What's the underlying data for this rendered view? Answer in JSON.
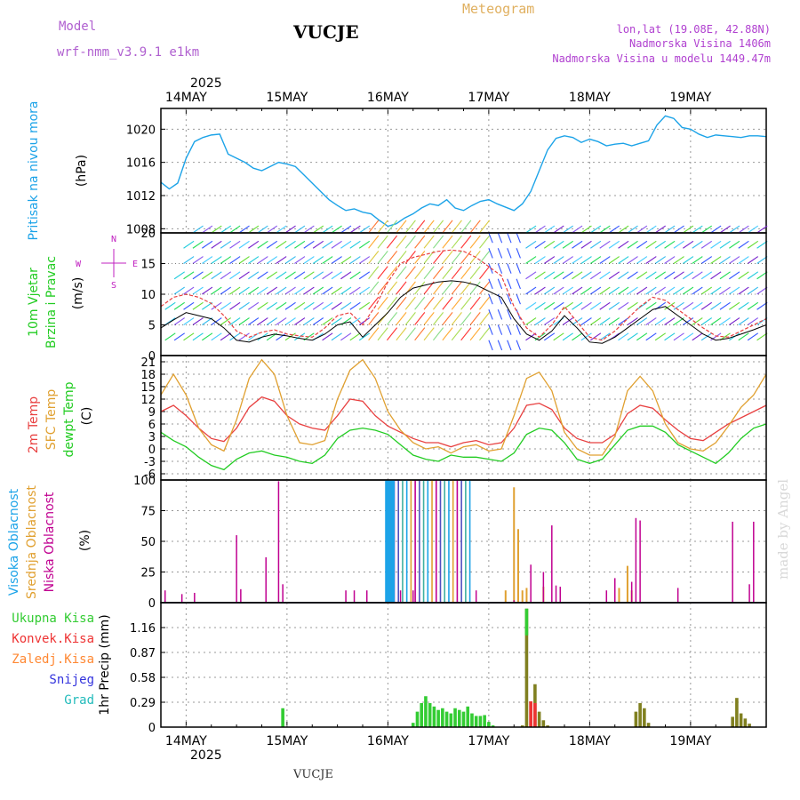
{
  "header": {
    "model_label": "Model",
    "model_name": "wrf-nmm_v3.9.1  e1km",
    "station": "VUCJE",
    "title": "Meteogram",
    "lonlat": "lon,lat (19.08E, 42.88N)",
    "elevation": "Nadmorska Visina 1406m",
    "model_elevation": "Nadmorska Visina u modelu 1449.47m",
    "year_top": "2025",
    "year_bottom": "2025",
    "footer_station": "VUCJE",
    "watermark": "made by Angel"
  },
  "colors": {
    "pressure": "#1ca3e8",
    "temp2m": "#e84040",
    "sfc": "#e0a030",
    "dew": "#22cc22",
    "magenta": "#c020c0",
    "high_cloud": "#1ca3e8",
    "mid_cloud": "#e0a030",
    "low_cloud": "#c00090",
    "total_precip": "#33cc33",
    "conv_precip": "#ee3333",
    "frozen": "#ff8833",
    "snow": "#3333dd",
    "hail": "#22bbbb"
  },
  "chart_data": [
    {
      "type": "line",
      "panel": "pressure",
      "ylabel": [
        "Pritisak na nivou mora",
        "(hPa)"
      ],
      "x_ticks": [
        "14MAY",
        "15MAY",
        "16MAY",
        "17MAY",
        "18MAY",
        "19MAY"
      ],
      "x_range_hours": [
        -6,
        138
      ],
      "ylim": [
        1007.5,
        1022.5
      ],
      "yticks": [
        1008,
        1012,
        1016,
        1020
      ],
      "grid": true,
      "series": [
        {
          "x": [
            -6,
            -4,
            -2,
            0,
            2,
            4,
            6,
            8,
            10,
            12,
            14,
            16,
            18,
            20,
            22,
            24,
            26,
            28,
            30,
            32,
            34,
            36,
            38,
            40,
            42,
            44,
            46,
            48,
            50,
            52,
            54,
            56,
            58,
            60,
            62,
            64,
            66,
            68,
            70,
            72,
            74,
            76,
            78,
            80,
            82,
            84,
            86,
            88,
            90,
            92,
            94,
            96,
            98,
            100,
            102,
            104,
            106,
            108,
            110,
            112,
            114,
            116,
            118,
            120,
            122,
            124,
            126,
            128,
            130,
            132,
            134,
            136,
            138
          ],
          "y": [
            1013.6,
            1012.8,
            1013.5,
            1016.5,
            1018.5,
            1019.0,
            1019.3,
            1019.4,
            1017.0,
            1016.5,
            1016.0,
            1015.3,
            1015.0,
            1015.5,
            1016.0,
            1015.8,
            1015.5,
            1014.5,
            1013.5,
            1012.5,
            1011.5,
            1010.8,
            1010.2,
            1010.4,
            1010.0,
            1009.8,
            1009.0,
            1008.3,
            1008.6,
            1009.3,
            1009.8,
            1010.5,
            1011.0,
            1010.8,
            1011.5,
            1010.5,
            1010.2,
            1010.8,
            1011.3,
            1011.5,
            1011.0,
            1010.6,
            1010.2,
            1011.0,
            1012.5,
            1015.0,
            1017.5,
            1018.9,
            1019.2,
            1019.0,
            1018.4,
            1018.8,
            1018.5,
            1018.0,
            1018.2,
            1018.3,
            1018.0,
            1018.3,
            1018.6,
            1020.5,
            1021.6,
            1021.3,
            1020.2,
            1020.0,
            1019.4,
            1019.0,
            1019.3,
            1019.2,
            1019.1,
            1019.0,
            1019.2,
            1019.2,
            1019.1
          ]
        }
      ]
    },
    {
      "type": "line",
      "panel": "wind",
      "ylabel": [
        "10m Vjetar",
        "Brzina i Pravac",
        "(m/s)"
      ],
      "compass_labels": [
        "N",
        "W",
        "E",
        "S"
      ],
      "ylim": [
        0,
        20
      ],
      "yticks": [
        0,
        5,
        10,
        15,
        20
      ],
      "grid": true,
      "series": [
        {
          "name": "speed",
          "x": [
            -6,
            -3,
            0,
            3,
            6,
            9,
            12,
            15,
            18,
            21,
            24,
            27,
            30,
            33,
            36,
            39,
            42,
            45,
            48,
            51,
            54,
            57,
            60,
            63,
            66,
            69,
            72,
            75,
            78,
            81,
            84,
            87,
            90,
            93,
            96,
            99,
            102,
            105,
            108,
            111,
            114,
            117,
            120,
            123,
            126,
            129,
            132,
            135,
            138
          ],
          "y": [
            4.5,
            5.8,
            7.0,
            6.5,
            6.0,
            4.5,
            2.5,
            2.2,
            3.0,
            3.5,
            3.2,
            2.8,
            2.5,
            3.5,
            5.0,
            5.5,
            3.0,
            5.0,
            7.0,
            9.5,
            11.0,
            11.5,
            12.0,
            12.2,
            12.0,
            11.5,
            10.5,
            9.5,
            6.0,
            3.5,
            2.5,
            4.0,
            6.5,
            4.5,
            2.2,
            2.0,
            3.0,
            4.5,
            6.0,
            7.5,
            8.0,
            6.5,
            5.0,
            3.5,
            2.5,
            2.8,
            3.5,
            4.2,
            5.0
          ]
        },
        {
          "name": "gust",
          "x": [
            -6,
            -3,
            0,
            3,
            6,
            9,
            12,
            15,
            18,
            21,
            24,
            27,
            30,
            33,
            36,
            39,
            42,
            45,
            48,
            51,
            54,
            57,
            60,
            63,
            66,
            69,
            72,
            75,
            78,
            81,
            84,
            87,
            90,
            93,
            96,
            99,
            102,
            105,
            108,
            111,
            114,
            117,
            120,
            123,
            126,
            129,
            132,
            135,
            138
          ],
          "y": [
            8.0,
            9.5,
            10.0,
            9.5,
            8.5,
            6.5,
            4.0,
            3.0,
            3.8,
            4.2,
            3.5,
            3.2,
            3.0,
            4.5,
            6.5,
            7.0,
            5.0,
            8.0,
            12.0,
            15.0,
            16.0,
            16.5,
            17.0,
            17.2,
            17.0,
            16.0,
            14.5,
            13.0,
            8.0,
            4.5,
            3.0,
            5.0,
            8.0,
            5.5,
            3.0,
            2.5,
            4.0,
            6.0,
            8.0,
            9.5,
            9.0,
            7.5,
            6.0,
            4.5,
            3.2,
            3.0,
            4.0,
            5.0,
            6.0
          ]
        }
      ]
    },
    {
      "type": "line",
      "panel": "temperature",
      "ylabel": [
        "2m Temp",
        "SFC Temp",
        "dewpt Temp",
        "(C)"
      ],
      "ylim": [
        -7.5,
        22.5
      ],
      "yticks": [
        -6,
        -3,
        0,
        3,
        6,
        9,
        12,
        15,
        18,
        21
      ],
      "grid": true,
      "series": [
        {
          "name": "2m Temp",
          "x": [
            -6,
            -3,
            0,
            3,
            6,
            9,
            12,
            15,
            18,
            21,
            24,
            27,
            30,
            33,
            36,
            39,
            42,
            45,
            48,
            51,
            54,
            57,
            60,
            63,
            66,
            69,
            72,
            75,
            78,
            81,
            84,
            87,
            90,
            93,
            96,
            99,
            102,
            105,
            108,
            111,
            114,
            117,
            120,
            123,
            126,
            129,
            132,
            135,
            138
          ],
          "y": [
            9,
            10.5,
            8,
            5,
            2.5,
            1.8,
            5,
            10,
            12.5,
            11.5,
            8,
            6,
            5,
            4.5,
            8,
            12,
            11.5,
            8,
            5.5,
            4,
            2.5,
            1.5,
            1.5,
            0.5,
            1.5,
            2,
            1,
            1.5,
            5,
            10.5,
            11,
            9.5,
            5,
            2.5,
            1.5,
            1.5,
            3.5,
            8.5,
            10.5,
            9.8,
            7,
            4.5,
            2.5,
            2,
            4,
            6,
            7.5,
            9,
            10.5
          ]
        },
        {
          "name": "SFC Temp",
          "x": [
            -6,
            -3,
            0,
            3,
            6,
            9,
            12,
            15,
            18,
            21,
            24,
            27,
            30,
            33,
            36,
            39,
            42,
            45,
            48,
            51,
            54,
            57,
            60,
            63,
            66,
            69,
            72,
            75,
            78,
            81,
            84,
            87,
            90,
            93,
            96,
            99,
            102,
            105,
            108,
            111,
            114,
            117,
            120,
            123,
            126,
            129,
            132,
            135,
            138
          ],
          "y": [
            13,
            18,
            13,
            5,
            1,
            -0.5,
            7,
            17,
            21.5,
            18,
            8,
            1.5,
            1,
            2,
            12,
            19,
            21.5,
            17,
            9,
            4.5,
            1.5,
            0,
            0.5,
            -1,
            0.5,
            1,
            -0.5,
            0,
            8,
            17,
            18.5,
            14,
            4,
            0,
            -1.5,
            -1.5,
            3,
            14,
            17.5,
            14,
            6,
            1.5,
            0,
            -0.5,
            1.5,
            5.5,
            10,
            13,
            18
          ]
        },
        {
          "name": "dewpt Temp",
          "x": [
            -6,
            -3,
            0,
            3,
            6,
            9,
            12,
            15,
            18,
            21,
            24,
            27,
            30,
            33,
            36,
            39,
            42,
            45,
            48,
            51,
            54,
            57,
            60,
            63,
            66,
            69,
            72,
            75,
            78,
            81,
            84,
            87,
            90,
            93,
            96,
            99,
            102,
            105,
            108,
            111,
            114,
            117,
            120,
            123,
            126,
            129,
            132,
            135,
            138
          ],
          "y": [
            4,
            2,
            0.5,
            -2,
            -4,
            -5,
            -2.5,
            -1,
            -0.5,
            -1.5,
            -2,
            -3,
            -3.5,
            -1.5,
            2.5,
            4.5,
            5,
            4.5,
            3.5,
            1,
            -1.5,
            -2.5,
            -3,
            -1.5,
            -2,
            -2,
            -2.5,
            -3,
            -1,
            3.5,
            5,
            4.5,
            1.5,
            -2.5,
            -3.5,
            -2.5,
            1,
            4.5,
            5.5,
            5.5,
            4,
            1,
            -0.5,
            -2,
            -3.5,
            -1,
            2.5,
            5,
            6
          ]
        }
      ]
    },
    {
      "type": "bar",
      "panel": "clouds",
      "ylabel": [
        "Visoka Oblacnost",
        "Srednja Oblacnost",
        "Niska Oblacnost",
        "(%)"
      ],
      "ylim": [
        0,
        100
      ],
      "yticks": [
        0,
        25,
        50,
        75,
        100
      ],
      "grid": true,
      "low": {
        "x": [
          -5,
          -1,
          2,
          12,
          13,
          19,
          22,
          23,
          38,
          40,
          43,
          51,
          54,
          69,
          78,
          82,
          85,
          87,
          88,
          89,
          100,
          102,
          106,
          107,
          108,
          117,
          130,
          134,
          135
        ],
        "y": [
          10,
          7,
          8,
          55,
          11,
          37,
          99,
          15,
          10,
          10,
          10,
          10,
          10,
          10,
          2,
          31,
          25,
          63,
          14,
          13,
          10,
          20,
          17,
          69,
          67,
          12,
          66,
          15,
          66
        ]
      },
      "mid": {
        "x": [
          76,
          78,
          79,
          80,
          81,
          85,
          103,
          105,
          106
        ],
        "y": [
          10,
          94,
          60,
          10,
          12,
          13,
          12,
          30,
          10
        ]
      },
      "high": {
        "x": [
          48,
          49
        ],
        "y": [
          100,
          100
        ]
      },
      "mixed_band": {
        "x_start": 47.5,
        "x_end": 68,
        "step": 1,
        "value": 100
      }
    },
    {
      "type": "bar",
      "panel": "precip",
      "ylabel": [
        "1hr Precip (mm)"
      ],
      "legend": [
        "Ukupna Kisa",
        "Konvek.Kisa",
        "Zaledj.Kisa",
        "Snijeg",
        "Grad"
      ],
      "ylim": [
        0,
        1.45
      ],
      "yticks": [
        0,
        0.29,
        0.58,
        0.87,
        1.16
      ],
      "grid": true,
      "total": {
        "x": [
          23,
          54,
          55,
          56,
          57,
          58,
          59,
          60,
          61,
          62,
          63,
          64,
          65,
          66,
          67,
          68,
          69,
          70,
          71,
          72,
          73
        ],
        "y": [
          0.22,
          0.05,
          0.18,
          0.28,
          0.36,
          0.28,
          0.24,
          0.2,
          0.22,
          0.18,
          0.16,
          0.22,
          0.2,
          0.18,
          0.24,
          0.16,
          0.13,
          0.13,
          0.14,
          0.06,
          0.02
        ]
      },
      "olive": {
        "x": [
          80,
          81,
          82,
          83,
          84,
          85,
          86,
          107,
          108,
          109,
          110,
          130,
          131,
          132,
          133,
          134
        ],
        "y": [
          0.02,
          1.38,
          0.3,
          0.5,
          0.18,
          0.08,
          0.02,
          0.18,
          0.28,
          0.22,
          0.05,
          0.12,
          0.34,
          0.16,
          0.1,
          0.04
        ]
      },
      "conv": {
        "x": [
          82,
          83
        ],
        "y": [
          0.3,
          0.28
        ]
      }
    }
  ]
}
